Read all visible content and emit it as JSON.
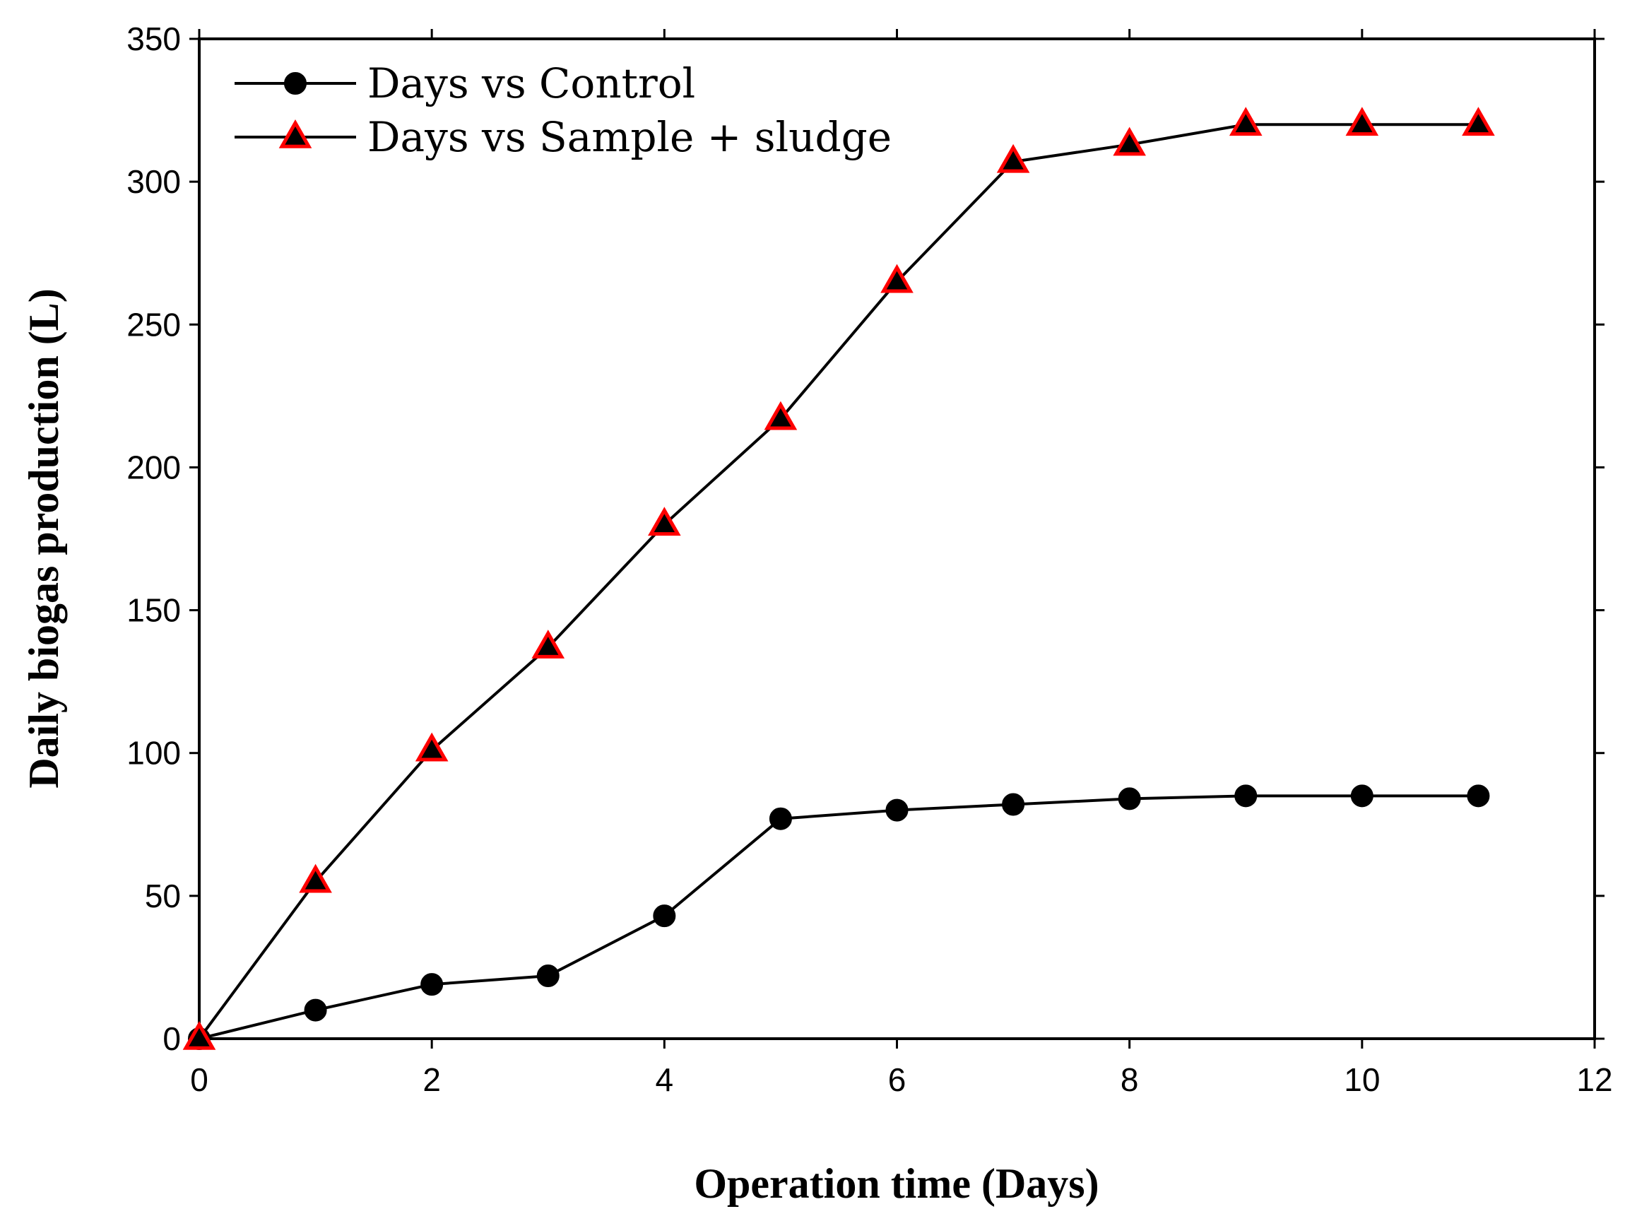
{
  "chart_data": {
    "type": "line",
    "title": "",
    "xlabel": "Operation time (Days)",
    "ylabel": "Daily biogas production (L)",
    "xlim": [
      0,
      12
    ],
    "ylim": [
      0,
      350
    ],
    "xticks": [
      0,
      2,
      4,
      6,
      8,
      10,
      12
    ],
    "yticks": [
      0,
      50,
      100,
      150,
      200,
      250,
      300,
      350
    ],
    "grid": false,
    "legend_position": "top-left",
    "series": [
      {
        "name": "Days vs Control",
        "marker": "circle",
        "color": "#000000",
        "marker_color": "#000000",
        "x": [
          0,
          1,
          2,
          3,
          4,
          5,
          6,
          7,
          8,
          9,
          10,
          11
        ],
        "y": [
          0,
          10,
          19,
          22,
          43,
          77,
          80,
          82,
          84,
          85,
          85,
          85
        ]
      },
      {
        "name": "Days vs Sample + sludge",
        "marker": "triangle",
        "color": "#000000",
        "marker_color": "#000000",
        "marker_edge_color": "#ff0000",
        "x": [
          0,
          1,
          2,
          3,
          4,
          5,
          6,
          7,
          8,
          9,
          10,
          11
        ],
        "y": [
          0,
          55,
          101,
          137,
          180,
          217,
          265,
          307,
          313,
          320,
          320,
          320
        ]
      }
    ]
  }
}
